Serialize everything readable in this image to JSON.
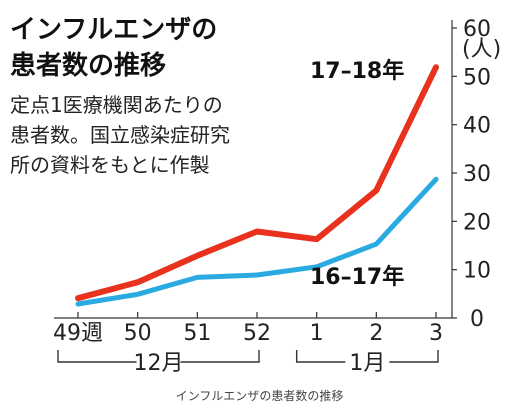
{
  "chart_data": {
    "type": "line",
    "title_lines": [
      "インフルエンザの",
      "患者数の推移"
    ],
    "subtitle_lines": [
      "定点1医療機関あたりの",
      "患者数。国立感染症研究",
      "所の資料をもとに作製"
    ],
    "caption": "インフルエンザの患者数の推移",
    "categories": [
      "49週",
      "50",
      "51",
      "52",
      "1",
      "2",
      "3"
    ],
    "month_groups": [
      {
        "label": "12月",
        "from": 0,
        "to": 3
      },
      {
        "label": "1月",
        "from": 4,
        "to": 6
      }
    ],
    "yticks": [
      0,
      10,
      20,
      30,
      40,
      50,
      60
    ],
    "ylim": [
      0,
      60
    ],
    "yunit": "(人)",
    "grid": false,
    "series": [
      {
        "name": "17–18年",
        "color": "#e8321e",
        "values": [
          4.1,
          7.4,
          12.9,
          17.9,
          16.3,
          26.4,
          51.9
        ]
      },
      {
        "name": "16–17年",
        "color": "#29abe2",
        "values": [
          2.9,
          4.9,
          8.4,
          8.9,
          10.6,
          15.3,
          28.7
        ]
      }
    ]
  }
}
